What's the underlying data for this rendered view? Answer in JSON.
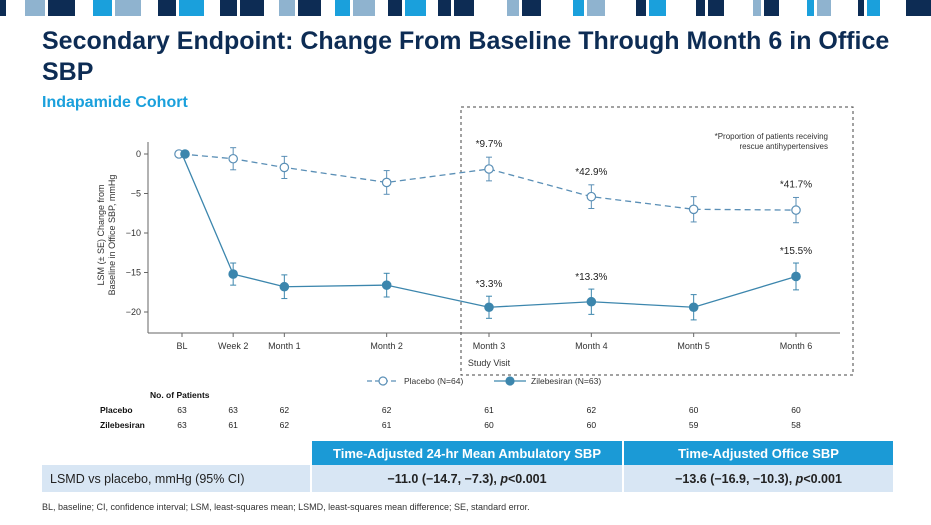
{
  "header": {
    "title": "Secondary Endpoint: Change From Baseline Through Month 6 in Office SBP",
    "subtitle": "Indapamide Cohort"
  },
  "chart_data": {
    "type": "line",
    "ylabel_line1": "LSM (± SE) Change from",
    "ylabel_line2": "Baseline in Office SBP, mmHg",
    "xlabel": "Study Visit",
    "ylim": [
      -22,
      2
    ],
    "yticks": [
      0,
      -5,
      -10,
      -15,
      -20
    ],
    "yticklabels": [
      "0",
      "−5",
      "−10",
      "−15",
      "−20"
    ],
    "categories": [
      "BL",
      "Week 2",
      "Month 1",
      "Month 2",
      "Month 3",
      "Month 4",
      "Month 5",
      "Month 6"
    ],
    "x_weeks": [
      0,
      2,
      4,
      8,
      12,
      16,
      20,
      24
    ],
    "series": [
      {
        "name": "Placebo (N=64)",
        "color": "#5a8fb6",
        "style": "dashed",
        "marker": "open-circle",
        "values": [
          0,
          -0.6,
          -1.7,
          -3.6,
          -1.9,
          -5.4,
          -7.0,
          -7.1
        ],
        "se": [
          0,
          1.4,
          1.4,
          1.5,
          1.5,
          1.5,
          1.6,
          1.6
        ]
      },
      {
        "name": "Zilebesiran (N=63)",
        "color": "#3c86ad",
        "style": "solid",
        "marker": "filled-circle",
        "values": [
          0,
          -15.2,
          -16.8,
          -16.6,
          -19.4,
          -18.7,
          -19.4,
          -15.5
        ],
        "se": [
          0,
          1.4,
          1.5,
          1.5,
          1.4,
          1.6,
          1.6,
          1.7
        ]
      }
    ],
    "annotations": {
      "note_line1": "*Proportion of patients receiving",
      "note_line2": "rescue antihypertensives",
      "placebo": [
        {
          "text": "*9.7%",
          "index": 4
        },
        {
          "text": "*42.9%",
          "index": 5
        },
        {
          "text": "*41.7%",
          "index": 7
        }
      ],
      "zilebesiran": [
        {
          "text": "*3.3%",
          "index": 4
        },
        {
          "text": "*13.3%",
          "index": 5
        },
        {
          "text": "*15.5%",
          "index": 7
        }
      ]
    },
    "legend_position": "bottom-center",
    "grid": false
  },
  "patients": {
    "heading": "No. of Patients",
    "rows": [
      {
        "label": "Placebo",
        "values": [
          "63",
          "63",
          "62",
          "62",
          "61",
          "62",
          "60",
          "60"
        ]
      },
      {
        "label": "Zilebesiran",
        "values": [
          "63",
          "61",
          "62",
          "61",
          "60",
          "60",
          "59",
          "58"
        ]
      }
    ]
  },
  "results_table": {
    "headers": [
      "Time-Adjusted 24-hr Mean Ambulatory SBP",
      "Time-Adjusted Office SBP"
    ],
    "row_label": "LSMD vs placebo, mmHg (95% CI)",
    "ambulatory_prefix": "−11.0 (−14.7, −7.3), ",
    "ambulatory_p": "p",
    "ambulatory_suffix": "<0.001",
    "office_prefix": "−13.6 (−16.9, −10.3), ",
    "office_p": "p",
    "office_suffix": "<0.001"
  },
  "footnote": "BL, baseline; CI, confidence interval; LSM, least-squares mean; LSMD, least-squares mean difference; SE, standard error.",
  "colors": {
    "navy": "#0d2c54",
    "accent_blue": "#1aa0dc",
    "table_header": "#1b9ad6",
    "table_row": "#d8e6f4"
  }
}
